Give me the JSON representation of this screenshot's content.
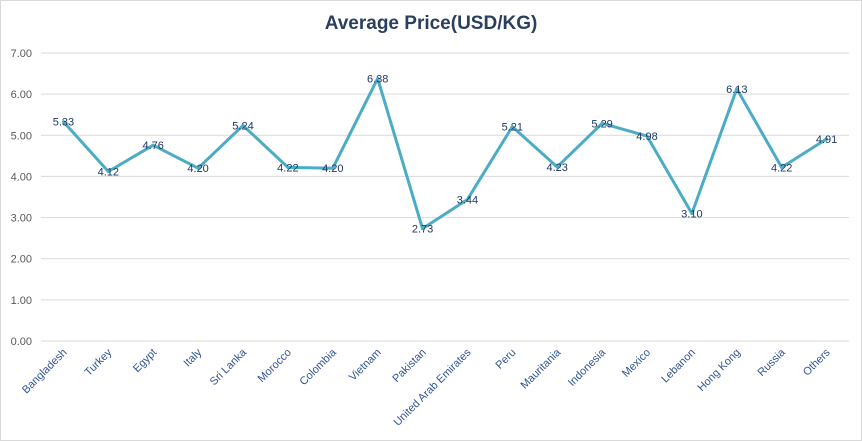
{
  "chart_data": {
    "type": "line",
    "title": "Average Price(USD/KG)",
    "xlabel": "",
    "ylabel": "",
    "ylim": [
      0,
      7
    ],
    "yticks": [
      "0.00",
      "1.00",
      "2.00",
      "3.00",
      "4.00",
      "5.00",
      "6.00",
      "7.00"
    ],
    "grid": true,
    "legend": "none",
    "categories": [
      "Bangladesh",
      "Turkey",
      "Egypt",
      "Italy",
      "Sri Lanka",
      "Morocco",
      "Colombia",
      "Vietnam",
      "Pakistan",
      "United Arab Emirates",
      "Peru",
      "Mauritania",
      "Indonesia",
      "Mexico",
      "Lebanon",
      "Hong Kong",
      "Russia",
      "Others"
    ],
    "series": [
      {
        "values": [
          5.33,
          4.12,
          4.76,
          4.2,
          5.24,
          4.22,
          4.2,
          6.38,
          2.73,
          3.44,
          5.21,
          4.23,
          5.29,
          4.98,
          3.1,
          6.13,
          4.22,
          4.91
        ],
        "labels": [
          "5.33",
          "4.12",
          "4.76",
          "4.20",
          "5.24",
          "4.22",
          "4.20",
          "6.38",
          "2.73",
          "3.44",
          "5.21",
          "4.23",
          "5.29",
          "4.98",
          "3.10",
          "6.13",
          "4.22",
          "4.91"
        ],
        "color": "#4bacc6"
      }
    ]
  }
}
